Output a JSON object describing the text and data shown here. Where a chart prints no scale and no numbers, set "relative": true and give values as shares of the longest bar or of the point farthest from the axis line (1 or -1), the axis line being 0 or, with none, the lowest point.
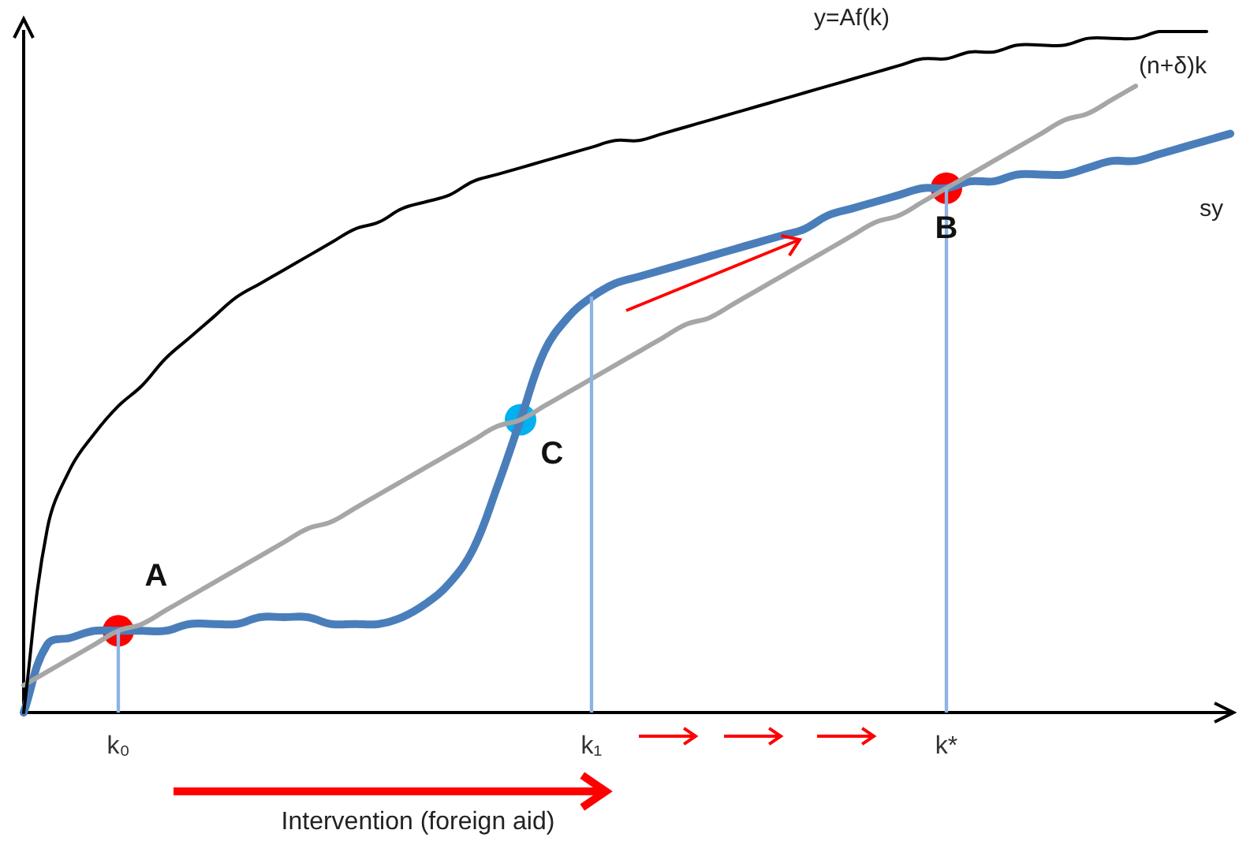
{
  "chart_data": {
    "type": "line",
    "relative": true,
    "categories": [
      null,
      null,
      null,
      null,
      "k₀",
      null,
      null,
      null,
      null,
      null,
      null,
      null,
      null,
      null,
      null,
      null,
      null,
      null,
      null,
      null,
      null,
      null,
      null,
      null,
      "k₁",
      null,
      null,
      null,
      null,
      null,
      null,
      null,
      null,
      null,
      null,
      null,
      null,
      null,
      null,
      "k*",
      null,
      null,
      null,
      null,
      null,
      null,
      null,
      null,
      null,
      null,
      null,
      null
    ],
    "tick_labels": "x",
    "grid": false,
    "legend": false,
    "series": [
      {
        "name": "y=Af(k)",
        "color": "#000000",
        "values": [
          0,
          0.27,
          0.36,
          0.41,
          0.45,
          0.48,
          0.52,
          0.55,
          0.58,
          0.61,
          0.63,
          0.65,
          0.67,
          0.69,
          0.71,
          0.72,
          0.74,
          0.75,
          0.76,
          0.78,
          0.79,
          0.8,
          0.81,
          0.82,
          0.83,
          0.84,
          0.84,
          0.85,
          0.86,
          0.87,
          0.88,
          0.89,
          0.9,
          0.91,
          0.92,
          0.93,
          0.94,
          0.95,
          0.96,
          0.96,
          0.97,
          0.97,
          0.98,
          0.98,
          0.98,
          0.99,
          0.99,
          0.99,
          1,
          1,
          1,
          null
        ]
      },
      {
        "name": "(n+δ)k",
        "color": "#a6a6a6",
        "values": [
          0.04,
          0.06,
          0.08,
          0.1,
          0.12,
          0.13,
          0.15,
          0.17,
          0.19,
          0.21,
          0.23,
          0.25,
          0.27,
          0.28,
          0.3,
          0.32,
          0.34,
          0.36,
          0.38,
          0.4,
          0.42,
          0.43,
          0.45,
          0.47,
          0.49,
          0.51,
          0.53,
          0.55,
          0.57,
          0.58,
          0.6,
          0.62,
          0.64,
          0.66,
          0.68,
          0.7,
          0.72,
          0.73,
          0.75,
          0.77,
          0.79,
          0.81,
          0.83,
          0.85,
          0.87,
          0.88,
          0.9,
          0.92,
          null,
          null,
          null,
          null
        ]
      },
      {
        "name": "sy",
        "color": "#4a7ebb",
        "values": [
          0,
          0.1,
          0.11,
          0.12,
          0.12,
          0.12,
          0.12,
          0.13,
          0.13,
          0.13,
          0.14,
          0.14,
          0.14,
          0.13,
          0.13,
          0.13,
          0.14,
          0.16,
          0.19,
          0.24,
          0.33,
          0.43,
          0.53,
          0.58,
          0.61,
          0.63,
          0.64,
          0.65,
          0.66,
          0.67,
          0.68,
          0.69,
          0.7,
          0.71,
          0.73,
          0.74,
          0.75,
          0.76,
          0.77,
          0.77,
          0.78,
          0.78,
          0.79,
          0.79,
          0.79,
          0.8,
          0.81,
          0.81,
          0.82,
          0.83,
          0.84,
          0.85
        ]
      },
      {
        "type": "bar",
        "color": "#8db3e2",
        "values": [
          null,
          null,
          null,
          null,
          0.12,
          null,
          null,
          null,
          null,
          null,
          null,
          null,
          null,
          null,
          null,
          null,
          null,
          null,
          null,
          null,
          null,
          null,
          null,
          null,
          0.61,
          null,
          null,
          null,
          null,
          null,
          null,
          null,
          null,
          null,
          null,
          null,
          null,
          null,
          null,
          0.77,
          null,
          null,
          null,
          null,
          null,
          null,
          null,
          null,
          null,
          null,
          null,
          null
        ]
      },
      {
        "type": "scatter",
        "marker": "circle",
        "values": [
          null,
          null,
          null,
          null,
          0.12,
          null,
          null,
          null,
          null,
          null,
          null,
          null,
          null,
          null,
          null,
          null,
          null,
          null,
          null,
          null,
          null,
          0.43,
          null,
          null,
          null,
          null,
          null,
          null,
          null,
          null,
          null,
          null,
          null,
          null,
          null,
          null,
          null,
          null,
          null,
          0.77,
          null,
          null,
          null,
          null,
          null,
          null,
          null,
          null,
          null,
          null,
          null,
          null
        ],
        "colors": [
          null,
          null,
          null,
          null,
          "#ff0000",
          null,
          null,
          null,
          null,
          null,
          null,
          null,
          null,
          null,
          null,
          null,
          null,
          null,
          null,
          null,
          null,
          "#00b0f0",
          null,
          null,
          null,
          null,
          null,
          null,
          null,
          null,
          null,
          null,
          null,
          null,
          null,
          null,
          null,
          null,
          null,
          "#ff0000",
          null,
          null,
          null,
          null,
          null,
          null,
          null,
          null,
          null,
          null,
          null,
          null
        ]
      }
    ],
    "annotations": [
      "A",
      "C",
      "B",
      "Intervention (foreign aid)"
    ]
  }
}
